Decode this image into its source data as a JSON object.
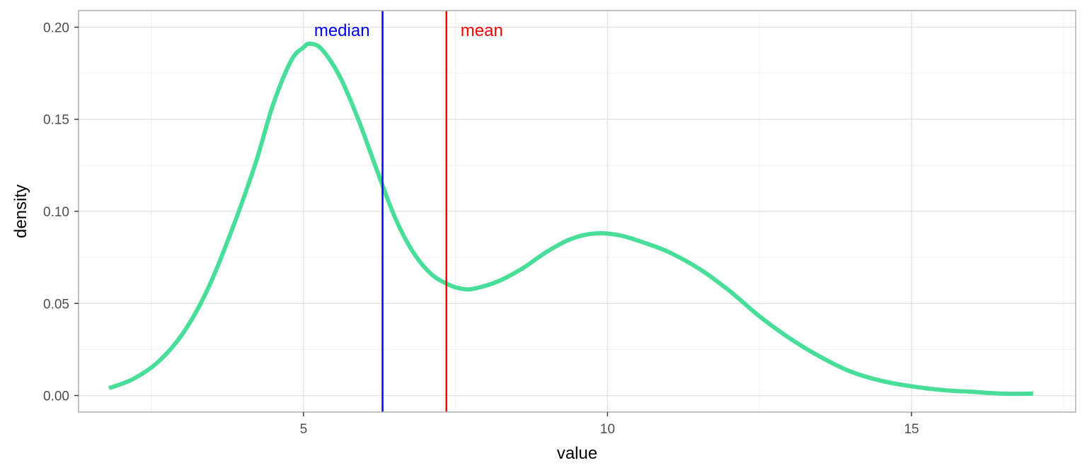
{
  "chart_data": {
    "type": "line",
    "title": "",
    "xlabel": "value",
    "ylabel": "density",
    "xlim": [
      1.3,
      17.7
    ],
    "ylim": [
      -0.009,
      0.209
    ],
    "x_ticks": [
      5,
      10,
      15
    ],
    "x_tick_labels": [
      "5",
      "10",
      "15"
    ],
    "y_ticks": [
      0.0,
      0.05,
      0.1,
      0.15,
      0.2
    ],
    "y_tick_labels": [
      "0.00",
      "0.05",
      "0.10",
      "0.15",
      "0.20"
    ],
    "grid": true,
    "legend": "none",
    "series": [
      {
        "color": "#48dd99",
        "x": [
          1.8,
          2.2,
          2.6,
          3.0,
          3.4,
          3.8,
          4.2,
          4.5,
          4.8,
          5.0,
          5.1,
          5.3,
          5.6,
          5.9,
          6.2,
          6.5,
          6.8,
          7.1,
          7.4,
          7.6,
          7.8,
          8.2,
          8.6,
          9.0,
          9.4,
          9.8,
          10.2,
          10.6,
          11.0,
          11.5,
          12.0,
          12.5,
          13.0,
          13.5,
          14.0,
          14.5,
          15.0,
          15.5,
          16.0,
          16.5,
          17.0
        ],
        "y": [
          0.004,
          0.009,
          0.018,
          0.033,
          0.056,
          0.088,
          0.125,
          0.158,
          0.182,
          0.189,
          0.191,
          0.188,
          0.173,
          0.15,
          0.123,
          0.097,
          0.078,
          0.066,
          0.06,
          0.058,
          0.058,
          0.062,
          0.069,
          0.078,
          0.085,
          0.088,
          0.087,
          0.083,
          0.078,
          0.069,
          0.057,
          0.043,
          0.031,
          0.021,
          0.013,
          0.008,
          0.005,
          0.003,
          0.002,
          0.001,
          0.001
        ]
      }
    ],
    "vlines": [
      {
        "label": "median",
        "x": 6.3,
        "color": "#0000ff"
      },
      {
        "label": "mean",
        "x": 7.35,
        "color": "#ff0000"
      }
    ]
  }
}
